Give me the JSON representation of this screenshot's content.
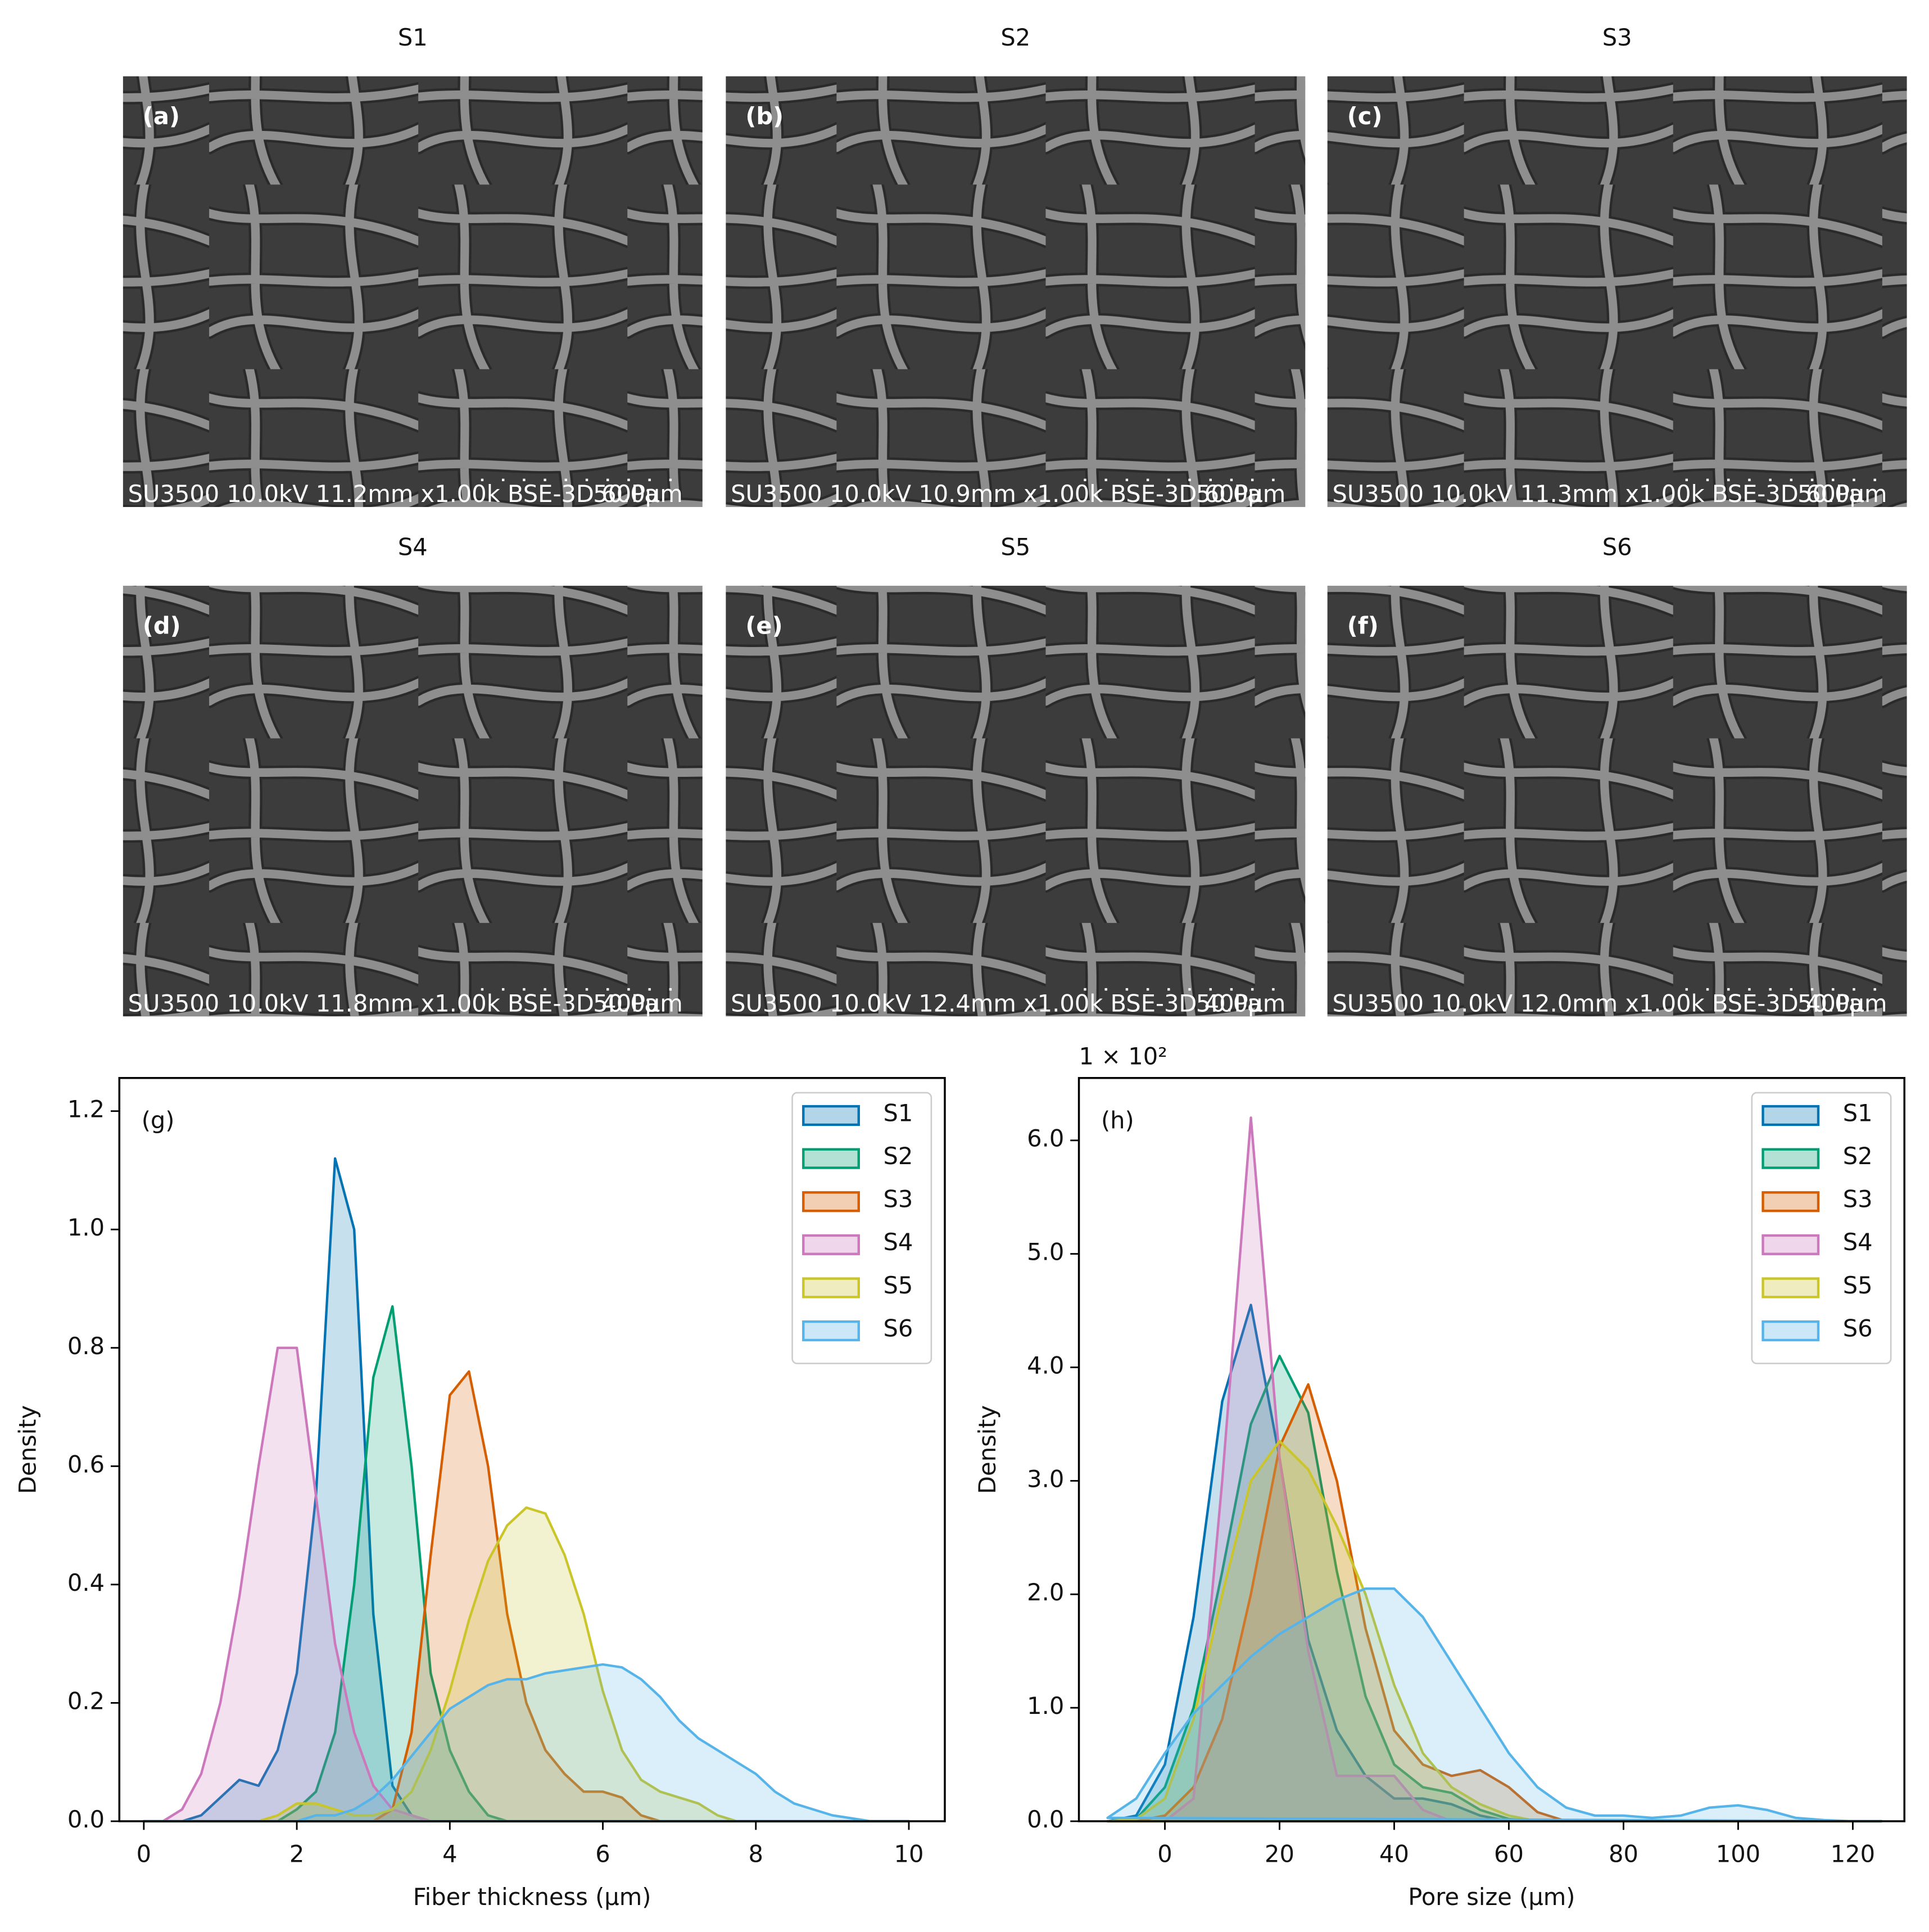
{
  "images": [
    {
      "title": "S1",
      "label": "(a)",
      "caption": "SU3500 10.0kV 11.2mm x1.00k BSE-3D 60Pa",
      "scale": "50.0μm"
    },
    {
      "title": "S2",
      "label": "(b)",
      "caption": "SU3500 10.0kV 10.9mm x1.00k BSE-3D 60Pa",
      "scale": "50.0μm"
    },
    {
      "title": "S3",
      "label": "(c)",
      "caption": "SU3500 10.0kV 11.3mm x1.00k BSE-3D 60Pa",
      "scale": "50.0μm"
    },
    {
      "title": "S4",
      "label": "(d)",
      "caption": "SU3500 10.0kV 11.8mm x1.00k BSE-3D 40Pa",
      "scale": "50.0μm"
    },
    {
      "title": "S5",
      "label": "(e)",
      "caption": "SU3500 10.0kV 12.4mm x1.00k BSE-3D 40Pa",
      "scale": "50.0μm"
    },
    {
      "title": "S6",
      "label": "(f)",
      "caption": "SU3500 10.0kV 12.0mm x1.00k BSE-3D 40Pa",
      "scale": "50.0μm"
    }
  ],
  "chart_data": [
    {
      "type": "area",
      "annotation": "(g)",
      "xlabel": "Fiber thickness (μm)",
      "ylabel": "Density",
      "xlim": [
        -0.32,
        10.47
      ],
      "ylim": [
        0,
        1.256
      ],
      "xticks": [
        0,
        2,
        4,
        6,
        8,
        10
      ],
      "yticks": [
        {
          "value": 0,
          "label": "0.0"
        },
        0.2,
        0.4,
        0.6,
        0.8,
        {
          "value": 1,
          "label": "1.0"
        },
        1.2
      ],
      "legend": "upper right",
      "x": [
        0,
        0.25,
        0.5,
        0.75,
        1,
        1.25,
        1.5,
        1.75,
        2,
        2.25,
        2.5,
        2.75,
        3,
        3.25,
        3.5,
        3.75,
        4,
        4.25,
        4.5,
        4.75,
        5,
        5.25,
        5.5,
        5.75,
        6,
        6.25,
        6.5,
        6.75,
        7,
        7.25,
        7.5,
        7.75,
        8,
        8.25,
        8.5,
        8.75,
        9,
        9.25,
        9.5,
        9.75,
        10
      ],
      "series": [
        {
          "name": "S1",
          "color": "#0173b2",
          "values": [
            0,
            0,
            0,
            0.01,
            0.04,
            0.07,
            0.06,
            0.12,
            0.25,
            0.55,
            1.12,
            1.0,
            0.35,
            0.06,
            0.01,
            0,
            0,
            0,
            0,
            0,
            0,
            0,
            0,
            0,
            0,
            0,
            0,
            0,
            0,
            0,
            0,
            0,
            0,
            0,
            0,
            0,
            0,
            0,
            0,
            0,
            0
          ]
        },
        {
          "name": "S2",
          "color": "#029e73",
          "values": [
            0,
            0,
            0,
            0,
            0,
            0,
            0,
            0,
            0.02,
            0.05,
            0.15,
            0.4,
            0.75,
            0.87,
            0.6,
            0.25,
            0.12,
            0.05,
            0.01,
            0,
            0,
            0,
            0,
            0,
            0,
            0,
            0,
            0,
            0,
            0,
            0,
            0,
            0,
            0,
            0,
            0,
            0,
            0,
            0,
            0,
            0
          ]
        },
        {
          "name": "S3",
          "color": "#d55e00",
          "values": [
            0,
            0,
            0,
            0,
            0,
            0,
            0,
            0,
            0,
            0,
            0,
            0,
            0,
            0.02,
            0.15,
            0.45,
            0.72,
            0.76,
            0.6,
            0.35,
            0.2,
            0.12,
            0.08,
            0.05,
            0.05,
            0.04,
            0.01,
            0,
            0,
            0,
            0,
            0,
            0,
            0,
            0,
            0,
            0,
            0,
            0,
            0,
            0
          ]
        },
        {
          "name": "S4",
          "color": "#cc78bc",
          "values": [
            0,
            0,
            0.02,
            0.08,
            0.2,
            0.38,
            0.6,
            0.8,
            0.8,
            0.55,
            0.3,
            0.15,
            0.06,
            0.02,
            0.01,
            0,
            0,
            0,
            0,
            0,
            0,
            0,
            0,
            0,
            0,
            0,
            0,
            0,
            0,
            0,
            0,
            0,
            0,
            0,
            0,
            0,
            0,
            0,
            0,
            0,
            0
          ]
        },
        {
          "name": "S5",
          "color": "#c9c52a",
          "values": [
            0,
            0,
            0,
            0,
            0,
            0,
            0,
            0.01,
            0.03,
            0.03,
            0.02,
            0.01,
            0.01,
            0.02,
            0.05,
            0.12,
            0.22,
            0.34,
            0.44,
            0.5,
            0.53,
            0.52,
            0.45,
            0.35,
            0.22,
            0.12,
            0.07,
            0.05,
            0.04,
            0.03,
            0.01,
            0,
            0,
            0,
            0,
            0,
            0,
            0,
            0,
            0,
            0
          ]
        },
        {
          "name": "S6",
          "color": "#56b4e9",
          "values": [
            0,
            0,
            0,
            0,
            0,
            0,
            0,
            0,
            0,
            0.01,
            0.01,
            0.02,
            0.04,
            0.07,
            0.11,
            0.15,
            0.19,
            0.21,
            0.23,
            0.24,
            0.24,
            0.25,
            0.255,
            0.26,
            0.265,
            0.26,
            0.24,
            0.21,
            0.17,
            0.14,
            0.12,
            0.1,
            0.08,
            0.05,
            0.03,
            0.02,
            0.01,
            0.005,
            0,
            0,
            0
          ]
        }
      ]
    },
    {
      "type": "area",
      "annotation": "(h)",
      "xlabel": "Pore size (μm)",
      "ylabel": "Density",
      "y_offset_label": "1 × 10²",
      "xlim": [
        -15,
        129
      ],
      "ylim": [
        0,
        6.55
      ],
      "xticks": [
        0,
        20,
        40,
        60,
        80,
        100,
        120
      ],
      "yticks": [
        {
          "value": 0,
          "label": "0.0"
        },
        {
          "value": 1,
          "label": "1.0"
        },
        {
          "value": 2,
          "label": "2.0"
        },
        {
          "value": 3,
          "label": "3.0"
        },
        {
          "value": 4,
          "label": "4.0"
        },
        {
          "value": 5,
          "label": "5.0"
        },
        {
          "value": 6,
          "label": "6.0"
        }
      ],
      "legend": "upper right",
      "x": [
        -10,
        -5,
        0,
        5,
        10,
        15,
        20,
        25,
        30,
        35,
        40,
        45,
        50,
        55,
        60,
        65,
        70,
        75,
        80,
        85,
        90,
        95,
        100,
        105,
        110,
        115,
        120,
        125
      ],
      "series": [
        {
          "name": "S1",
          "color": "#0173b2",
          "values": [
            0,
            0.05,
            0.5,
            1.8,
            3.7,
            4.55,
            3.2,
            1.6,
            0.8,
            0.4,
            0.2,
            0.2,
            0.15,
            0.05,
            0,
            0,
            0,
            0,
            0,
            0,
            0,
            0,
            0,
            0,
            0,
            0,
            0,
            0
          ]
        },
        {
          "name": "S2",
          "color": "#029e73",
          "values": [
            0,
            0.02,
            0.3,
            1.0,
            2.2,
            3.5,
            4.1,
            3.6,
            2.2,
            1.1,
            0.5,
            0.3,
            0.25,
            0.1,
            0.02,
            0,
            0,
            0,
            0,
            0,
            0,
            0,
            0,
            0,
            0,
            0,
            0,
            0
          ]
        },
        {
          "name": "S3",
          "color": "#d55e00",
          "values": [
            0,
            0,
            0.05,
            0.3,
            0.9,
            2.0,
            3.3,
            3.85,
            3.0,
            1.7,
            0.8,
            0.5,
            0.4,
            0.45,
            0.3,
            0.08,
            0,
            0,
            0,
            0,
            0,
            0,
            0,
            0,
            0,
            0,
            0,
            0
          ]
        },
        {
          "name": "S4",
          "color": "#cc78bc",
          "values": [
            0,
            0,
            0,
            0.2,
            3.0,
            6.2,
            3.2,
            1.5,
            0.4,
            0.4,
            0.4,
            0.1,
            0,
            0,
            0,
            0,
            0,
            0,
            0,
            0,
            0,
            0,
            0,
            0,
            0,
            0,
            0,
            0
          ]
        },
        {
          "name": "S5",
          "color": "#c9c52a",
          "values": [
            0,
            0.02,
            0.2,
            0.9,
            2.0,
            3.0,
            3.35,
            3.1,
            2.6,
            2.0,
            1.2,
            0.6,
            0.3,
            0.15,
            0.05,
            0,
            0,
            0,
            0,
            0,
            0,
            0,
            0,
            0,
            0,
            0,
            0,
            0
          ]
        },
        {
          "name": "S6",
          "color": "#56b4e9",
          "values": [
            0.03,
            0.2,
            0.6,
            0.95,
            1.2,
            1.45,
            1.65,
            1.8,
            1.95,
            2.05,
            2.05,
            1.8,
            1.4,
            1.0,
            0.6,
            0.3,
            0.12,
            0.05,
            0.05,
            0.03,
            0.05,
            0.12,
            0.14,
            0.1,
            0.03,
            0.01,
            0,
            0
          ]
        }
      ]
    }
  ]
}
